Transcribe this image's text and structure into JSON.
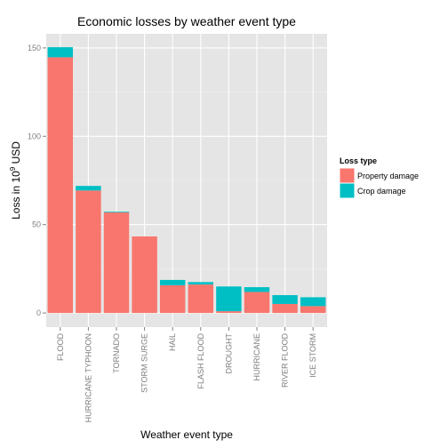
{
  "chart_data": {
    "type": "bar",
    "stacked": true,
    "title": "Economic losses by weather event type",
    "xlabel": "Weather event type",
    "ylabel_prefix": "Loss in 10",
    "ylabel_exponent": "9",
    "ylabel_suffix": " USD",
    "ylim": [
      -8,
      158
    ],
    "yticks": [
      0,
      50,
      100,
      150
    ],
    "ytick_labels": [
      "0",
      "50",
      "100",
      "150"
    ],
    "grid": true,
    "legend_position": "right",
    "categories": [
      "FLOOD",
      "HURRICANE TYPHOON",
      "TORNADO",
      "STORM SURGE",
      "HAIL",
      "FLASH FLOOD",
      "DROUGHT",
      "HURRICANE",
      "RIVER FLOOD",
      "ICE STORM"
    ],
    "legend_title": "Loss type",
    "series": [
      {
        "name": "Property damage",
        "color": "#f8766d",
        "values": [
          144.7,
          69.3,
          56.9,
          43.3,
          15.7,
          16.1,
          1.0,
          11.9,
          5.1,
          3.9
        ]
      },
      {
        "name": "Crop damage",
        "color": "#00bfc4",
        "values": [
          5.7,
          2.6,
          0.4,
          0.0,
          3.0,
          1.4,
          14.0,
          2.7,
          5.0,
          5.0
        ]
      }
    ]
  }
}
